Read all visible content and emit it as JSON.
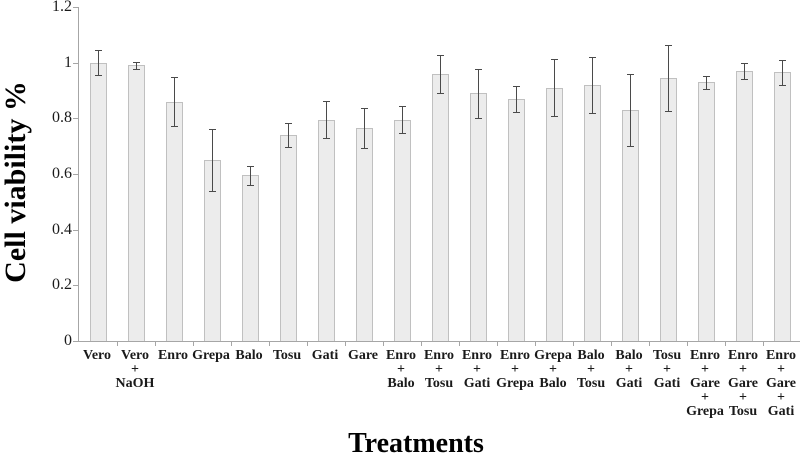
{
  "figure": {
    "y_axis_title": "Cell viability %",
    "x_axis_title": "Treatments"
  },
  "chart_data": {
    "type": "bar",
    "title": "",
    "xlabel": "Treatments",
    "ylabel": "Cell viability %",
    "ylim": [
      0,
      1.2
    ],
    "yticks": [
      0,
      0.2,
      0.4,
      0.6,
      0.8,
      1,
      1.2
    ],
    "ytick_labels": [
      "0",
      "0.2",
      "0.4",
      "0.6",
      "0.8",
      "1",
      "1.2"
    ],
    "grid": false,
    "legend": "none",
    "bar_fill_color": "#ececec",
    "bar_border_color": "#c0c0c0",
    "error_bar_color": "#4a4a4a",
    "axis_color": "#a6a6a6",
    "categories": [
      "Vero",
      "Vero + NaOH",
      "Enro",
      "Grepa",
      "Balo",
      "Tosu",
      "Gati",
      "Gare",
      "Enro + Balo",
      "Enro + Tosu",
      "Enro + Gati",
      "Enro + Grepa",
      "Grepa + Balo",
      "Balo + Tosu",
      "Balo + Gati",
      "Tosu + Gati",
      "Enro + Gare + Grepa",
      "Enro + Gare + Tosu",
      "Enro + Gare + Gati"
    ],
    "values": [
      1.0,
      0.99,
      0.86,
      0.65,
      0.595,
      0.74,
      0.795,
      0.765,
      0.795,
      0.96,
      0.89,
      0.87,
      0.91,
      0.92,
      0.83,
      0.945,
      0.93,
      0.97,
      0.965
    ],
    "errors": [
      0.045,
      0.012,
      0.088,
      0.11,
      0.035,
      0.042,
      0.067,
      0.073,
      0.048,
      0.068,
      0.088,
      0.046,
      0.103,
      0.1,
      0.128,
      0.118,
      0.023,
      0.028,
      0.045
    ]
  }
}
